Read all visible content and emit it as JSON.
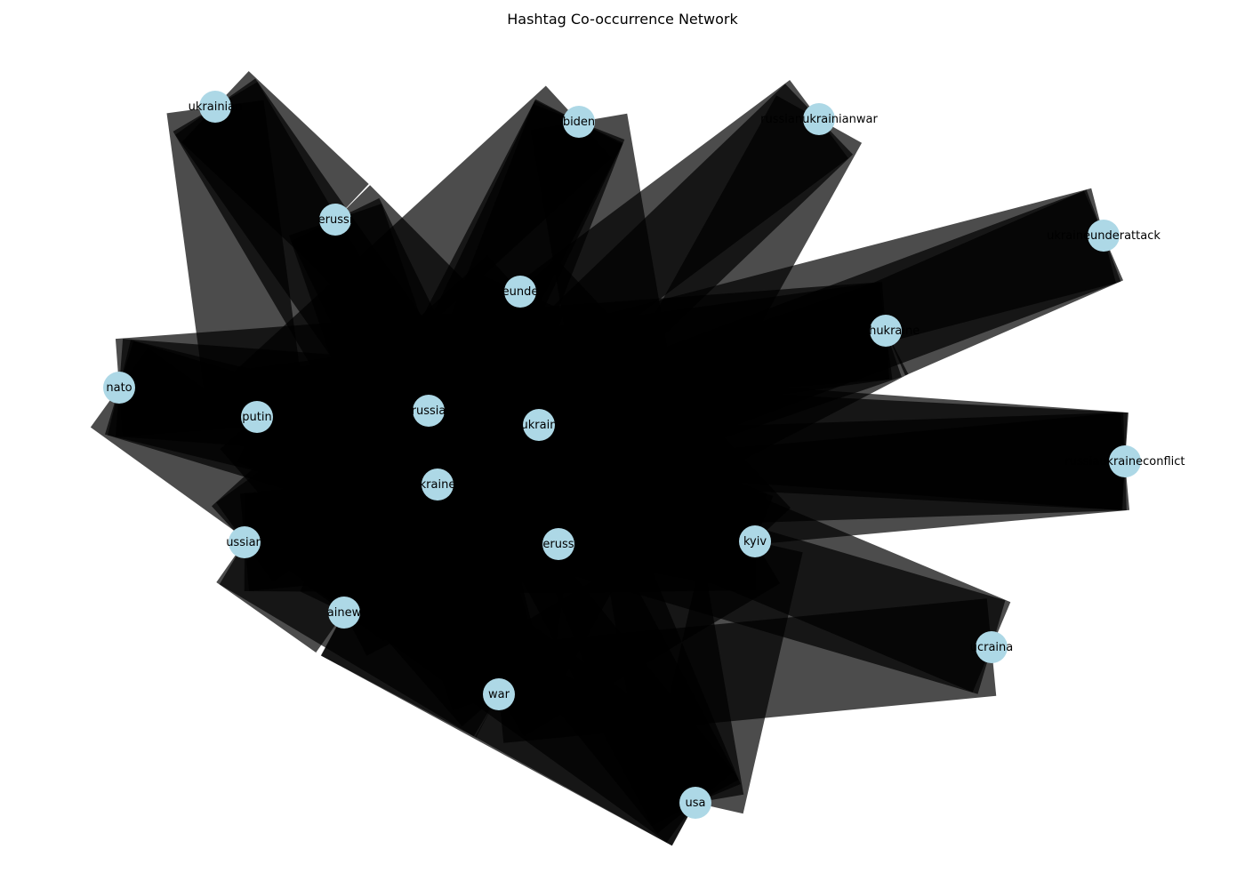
{
  "title": "Hashtag Co-occurrence Network",
  "colors": {
    "background": "#ffffff",
    "node_fill": "#add8e6",
    "edge_fill": "#000000",
    "label_color": "#000000"
  },
  "nodes": [
    {
      "id": "ukrainian",
      "label": "ukrainian"
    },
    {
      "id": "biden",
      "label": "biden"
    },
    {
      "id": "russianukrainianwar",
      "label": "russianukrainianwar"
    },
    {
      "id": "ukraineunderattack",
      "label": "ukraineunderattack"
    },
    {
      "id": "standwithrussia",
      "label": "erussi"
    },
    {
      "id": "ukraineunder",
      "label": "eunde"
    },
    {
      "id": "standwithukraine",
      "label": "withukraine"
    },
    {
      "id": "nato",
      "label": "nato"
    },
    {
      "id": "putin",
      "label": "putin"
    },
    {
      "id": "russia",
      "label": "russia"
    },
    {
      "id": "ukrain",
      "label": "ukrain"
    },
    {
      "id": "russiaukraineconflict",
      "label": "russiaukraineconflict"
    },
    {
      "id": "ukraine",
      "label": "kraine"
    },
    {
      "id": "russian",
      "label": "ussian"
    },
    {
      "id": "stoprussia",
      "label": "eruss"
    },
    {
      "id": "kyiv",
      "label": "kyiv"
    },
    {
      "id": "ukrainewar",
      "label": "ainew"
    },
    {
      "id": "ucraina",
      "label": "ucraina"
    },
    {
      "id": "war",
      "label": "war"
    },
    {
      "id": "usa",
      "label": "usa"
    }
  ]
}
